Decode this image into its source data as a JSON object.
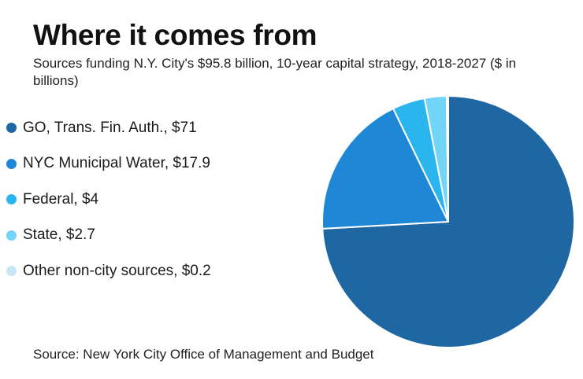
{
  "chart_data": {
    "type": "pie",
    "title": "Where it comes from",
    "subtitle": "Sources funding N.Y. City's $95.8 billion, 10-year capital strategy, 2018-2027 ($ in billions)",
    "categories": [
      "GO, Trans. Fin. Auth.",
      "NYC Municipal Water",
      "Federal",
      "State",
      "Other non-city sources"
    ],
    "values": [
      71,
      17.9,
      4,
      2.7,
      0.2
    ],
    "legend_labels": [
      "GO, Trans. Fin. Auth., $71",
      "NYC Municipal Water, $17.9",
      "Federal, $4",
      "State, $2.7",
      "Other non-city sources, $0.2"
    ],
    "colors": [
      "#1f67a3",
      "#1e88d6",
      "#2bb5ef",
      "#72d4f6",
      "#c9e6f7"
    ],
    "source": "Source: New York City Office of Management and Budget"
  }
}
